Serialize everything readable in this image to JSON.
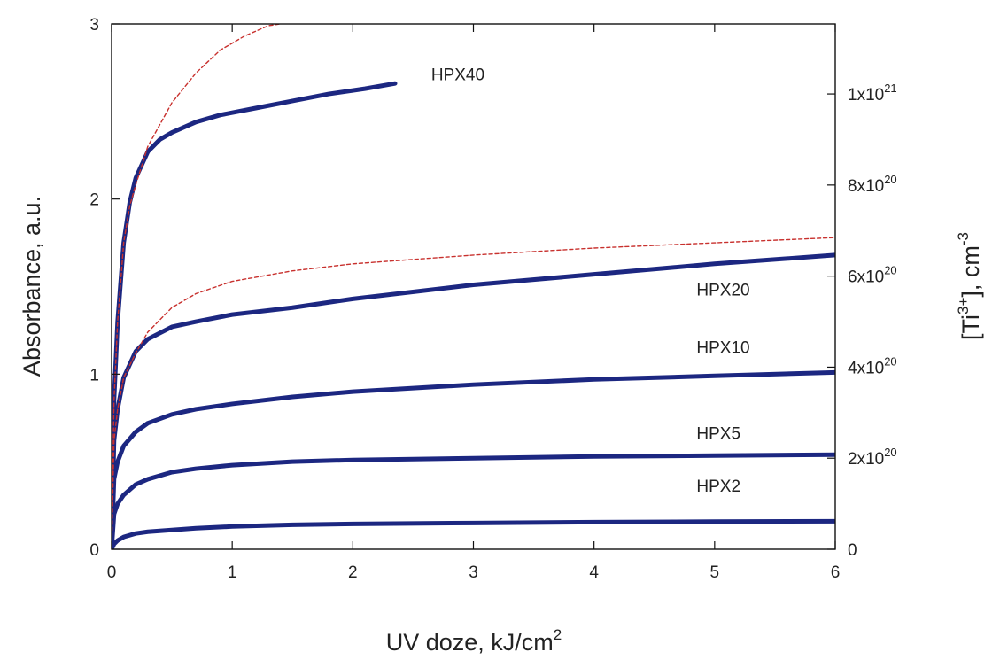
{
  "chart_data": {
    "type": "line",
    "xlabel": "UV doze, kJ/cm",
    "xlabel_sup": "2",
    "ylabel": "Absorbance, a.u.",
    "ylabel_right_parts": [
      "[Ti",
      "3+",
      "], cm",
      "-3"
    ],
    "xlim": [
      0,
      6
    ],
    "ylim": [
      0,
      3
    ],
    "grid": false,
    "x_ticks": [
      "0",
      "1",
      "2",
      "3",
      "4",
      "5",
      "6"
    ],
    "y_ticks": [
      "0",
      "1",
      "2",
      "3"
    ],
    "right_axis": {
      "ticks": [
        {
          "mantissa": "0",
          "exp": "",
          "y": 0
        },
        {
          "mantissa": "2x10",
          "exp": "20",
          "y": 0.52
        },
        {
          "mantissa": "4x10",
          "exp": "20",
          "y": 1.04
        },
        {
          "mantissa": "6x10",
          "exp": "20",
          "y": 1.56
        },
        {
          "mantissa": "8x10",
          "exp": "20",
          "y": 2.08
        },
        {
          "mantissa": "1x10",
          "exp": "21",
          "y": 2.6
        }
      ]
    },
    "series": [
      {
        "name": "HPX40",
        "style": "measured",
        "color": "#1c2781",
        "x": [
          0,
          0.02,
          0.05,
          0.1,
          0.15,
          0.2,
          0.3,
          0.4,
          0.5,
          0.7,
          0.9,
          1.2,
          1.5,
          1.8,
          2.1,
          2.35
        ],
        "y": [
          0,
          0.85,
          1.3,
          1.75,
          1.98,
          2.12,
          2.27,
          2.34,
          2.38,
          2.44,
          2.48,
          2.52,
          2.56,
          2.6,
          2.63,
          2.66
        ]
      },
      {
        "name": "HPX40 fit",
        "style": "fit",
        "color": "#c8312e",
        "x": [
          0,
          0.02,
          0.05,
          0.1,
          0.15,
          0.2,
          0.3,
          0.5,
          0.7,
          0.9,
          1.1,
          1.3,
          1.4
        ],
        "y": [
          0,
          0.85,
          1.3,
          1.75,
          1.96,
          2.08,
          2.3,
          2.55,
          2.72,
          2.85,
          2.93,
          2.99,
          3.0
        ]
      },
      {
        "name": "HPX20",
        "style": "measured",
        "color": "#1c2781",
        "x": [
          0,
          0.02,
          0.05,
          0.1,
          0.2,
          0.3,
          0.5,
          0.7,
          1,
          1.5,
          2,
          3,
          4,
          5,
          6
        ],
        "y": [
          0,
          0.62,
          0.8,
          0.98,
          1.13,
          1.2,
          1.27,
          1.3,
          1.34,
          1.38,
          1.43,
          1.51,
          1.57,
          1.63,
          1.68
        ]
      },
      {
        "name": "HPX20 fit",
        "style": "fit",
        "color": "#c8312e",
        "x": [
          0,
          0.02,
          0.05,
          0.1,
          0.2,
          0.3,
          0.5,
          0.7,
          1,
          1.5,
          2,
          3,
          4,
          5,
          6
        ],
        "y": [
          0,
          0.62,
          0.8,
          0.98,
          1.12,
          1.24,
          1.38,
          1.46,
          1.53,
          1.59,
          1.63,
          1.68,
          1.72,
          1.75,
          1.78
        ]
      },
      {
        "name": "HPX10",
        "style": "measured",
        "color": "#1c2781",
        "x": [
          0,
          0.02,
          0.05,
          0.1,
          0.2,
          0.3,
          0.5,
          0.7,
          1,
          1.5,
          2,
          3,
          4,
          5,
          6
        ],
        "y": [
          0,
          0.4,
          0.5,
          0.59,
          0.67,
          0.72,
          0.77,
          0.8,
          0.83,
          0.87,
          0.9,
          0.94,
          0.97,
          0.99,
          1.01
        ]
      },
      {
        "name": "HPX5",
        "style": "measured",
        "color": "#1c2781",
        "x": [
          0,
          0.02,
          0.05,
          0.1,
          0.2,
          0.3,
          0.5,
          0.7,
          1,
          1.5,
          2,
          3,
          4,
          5,
          6
        ],
        "y": [
          0,
          0.2,
          0.26,
          0.31,
          0.37,
          0.4,
          0.44,
          0.46,
          0.48,
          0.5,
          0.51,
          0.52,
          0.53,
          0.535,
          0.54
        ]
      },
      {
        "name": "HPX2",
        "style": "measured",
        "color": "#1c2781",
        "x": [
          0,
          0.02,
          0.05,
          0.1,
          0.2,
          0.3,
          0.5,
          0.7,
          1,
          1.5,
          2,
          3,
          4,
          5,
          6
        ],
        "y": [
          0,
          0.03,
          0.05,
          0.07,
          0.09,
          0.1,
          0.11,
          0.12,
          0.13,
          0.14,
          0.145,
          0.15,
          0.155,
          0.158,
          0.16
        ]
      }
    ],
    "annotations": [
      {
        "text": "HPX40",
        "x": 2.65,
        "y": 2.68
      },
      {
        "text": "HPX20",
        "x": 4.85,
        "y": 1.45
      },
      {
        "text": "HPX10",
        "x": 4.85,
        "y": 1.12
      },
      {
        "text": "HPX5",
        "x": 4.85,
        "y": 0.63
      },
      {
        "text": "HPX2",
        "x": 4.85,
        "y": 0.33
      }
    ]
  }
}
